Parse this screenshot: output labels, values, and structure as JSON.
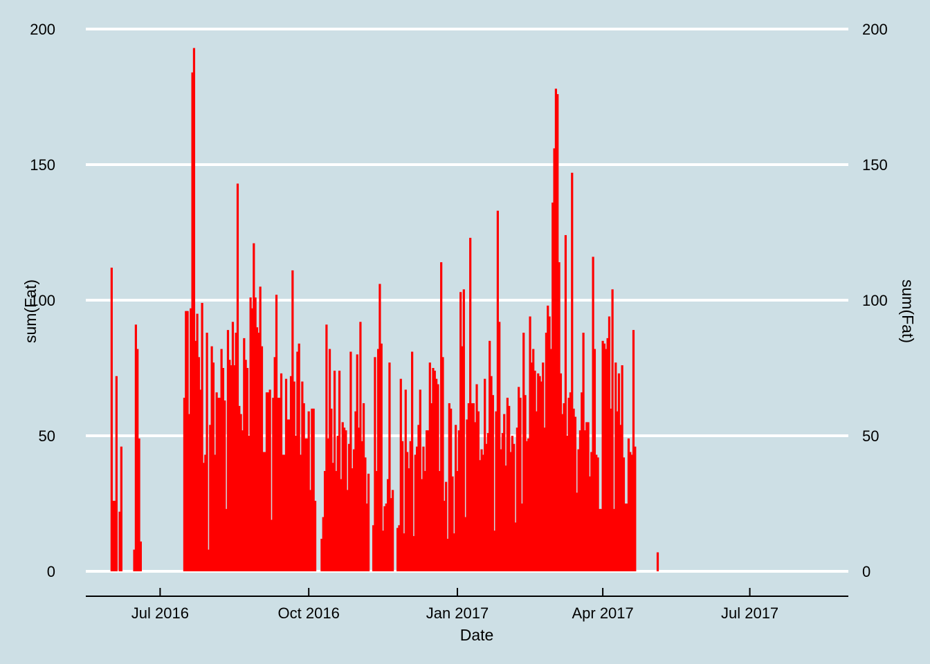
{
  "chart_data": {
    "type": "bar",
    "xlabel": "Date",
    "ylabel": "sum(Fat)",
    "ylabel_right": "sum(Fat)",
    "x_ticks": [
      {
        "date": "2016-07-01",
        "label": "Jul 2016"
      },
      {
        "date": "2016-10-01",
        "label": "Oct 2016"
      },
      {
        "date": "2017-01-01",
        "label": "Jan 2017"
      },
      {
        "date": "2017-04-01",
        "label": "Apr 2017"
      },
      {
        "date": "2017-07-01",
        "label": "Jul 2017"
      }
    ],
    "y_ticks": [
      0,
      50,
      100,
      150,
      200
    ],
    "ylim": [
      0,
      200
    ],
    "xlim": [
      "2016-05-16",
      "2017-08-31"
    ],
    "grid": "horizontal",
    "bar_color": "#ff0000",
    "background_color": "#cddfe5",
    "series": [
      {
        "points": [
          [
            "2016-06-01",
            112
          ],
          [
            "2016-06-02",
            26
          ],
          [
            "2016-06-03",
            26
          ],
          [
            "2016-06-04",
            72
          ],
          [
            "2016-06-06",
            22
          ],
          [
            "2016-06-07",
            46
          ],
          [
            "2016-06-15",
            8
          ],
          [
            "2016-06-16",
            91
          ],
          [
            "2016-06-17",
            82
          ],
          [
            "2016-06-18",
            49
          ],
          [
            "2016-06-19",
            11
          ],
          [
            "2016-07-16",
            64
          ],
          [
            "2016-07-17",
            96
          ],
          [
            "2016-07-18",
            96
          ],
          [
            "2016-07-19",
            58
          ],
          [
            "2016-07-20",
            97
          ],
          [
            "2016-07-21",
            184
          ],
          [
            "2016-07-22",
            193
          ],
          [
            "2016-07-23",
            85
          ],
          [
            "2016-07-24",
            95
          ],
          [
            "2016-07-25",
            79
          ],
          [
            "2016-07-26",
            67
          ],
          [
            "2016-07-27",
            99
          ],
          [
            "2016-07-28",
            40
          ],
          [
            "2016-07-29",
            43
          ],
          [
            "2016-07-30",
            88
          ],
          [
            "2016-07-31",
            8
          ],
          [
            "2016-08-01",
            54
          ],
          [
            "2016-08-02",
            83
          ],
          [
            "2016-08-03",
            77
          ],
          [
            "2016-08-04",
            43
          ],
          [
            "2016-08-05",
            66
          ],
          [
            "2016-08-06",
            64
          ],
          [
            "2016-08-07",
            64
          ],
          [
            "2016-08-08",
            82
          ],
          [
            "2016-08-09",
            75
          ],
          [
            "2016-08-10",
            63
          ],
          [
            "2016-08-11",
            23
          ],
          [
            "2016-08-12",
            89
          ],
          [
            "2016-08-13",
            78
          ],
          [
            "2016-08-14",
            76
          ],
          [
            "2016-08-15",
            92
          ],
          [
            "2016-08-16",
            76
          ],
          [
            "2016-08-17",
            88
          ],
          [
            "2016-08-18",
            143
          ],
          [
            "2016-08-19",
            61
          ],
          [
            "2016-08-20",
            58
          ],
          [
            "2016-08-21",
            52
          ],
          [
            "2016-08-22",
            86
          ],
          [
            "2016-08-23",
            78
          ],
          [
            "2016-08-24",
            75
          ],
          [
            "2016-08-25",
            50
          ],
          [
            "2016-08-26",
            101
          ],
          [
            "2016-08-27",
            97
          ],
          [
            "2016-08-28",
            121
          ],
          [
            "2016-08-29",
            101
          ],
          [
            "2016-08-30",
            90
          ],
          [
            "2016-08-31",
            88
          ],
          [
            "2016-09-01",
            105
          ],
          [
            "2016-09-02",
            83
          ],
          [
            "2016-09-03",
            44
          ],
          [
            "2016-09-04",
            44
          ],
          [
            "2016-09-05",
            66
          ],
          [
            "2016-09-06",
            66
          ],
          [
            "2016-09-07",
            67
          ],
          [
            "2016-09-08",
            19
          ],
          [
            "2016-09-09",
            64
          ],
          [
            "2016-09-10",
            79
          ],
          [
            "2016-09-11",
            102
          ],
          [
            "2016-09-12",
            64
          ],
          [
            "2016-09-13",
            64
          ],
          [
            "2016-09-14",
            73
          ],
          [
            "2016-09-15",
            43
          ],
          [
            "2016-09-16",
            43
          ],
          [
            "2016-09-17",
            71
          ],
          [
            "2016-09-18",
            56
          ],
          [
            "2016-09-19",
            56
          ],
          [
            "2016-09-20",
            72
          ],
          [
            "2016-09-21",
            111
          ],
          [
            "2016-09-22",
            70
          ],
          [
            "2016-09-23",
            50
          ],
          [
            "2016-09-24",
            81
          ],
          [
            "2016-09-25",
            84
          ],
          [
            "2016-09-26",
            43
          ],
          [
            "2016-09-27",
            70
          ],
          [
            "2016-09-28",
            62
          ],
          [
            "2016-09-29",
            49
          ],
          [
            "2016-09-30",
            49
          ],
          [
            "2016-10-01",
            59
          ],
          [
            "2016-10-02",
            30
          ],
          [
            "2016-10-03",
            60
          ],
          [
            "2016-10-04",
            60
          ],
          [
            "2016-10-05",
            26
          ],
          [
            "2016-10-09",
            12
          ],
          [
            "2016-10-10",
            20
          ],
          [
            "2016-10-11",
            37
          ],
          [
            "2016-10-12",
            91
          ],
          [
            "2016-10-13",
            49
          ],
          [
            "2016-10-14",
            82
          ],
          [
            "2016-10-15",
            60
          ],
          [
            "2016-10-16",
            40
          ],
          [
            "2016-10-17",
            74
          ],
          [
            "2016-10-18",
            37
          ],
          [
            "2016-10-19",
            50
          ],
          [
            "2016-10-20",
            74
          ],
          [
            "2016-10-21",
            34
          ],
          [
            "2016-10-22",
            55
          ],
          [
            "2016-10-23",
            53
          ],
          [
            "2016-10-24",
            52
          ],
          [
            "2016-10-25",
            30
          ],
          [
            "2016-10-26",
            47
          ],
          [
            "2016-10-27",
            81
          ],
          [
            "2016-10-28",
            38
          ],
          [
            "2016-10-29",
            45
          ],
          [
            "2016-10-30",
            59
          ],
          [
            "2016-10-31",
            80
          ],
          [
            "2016-11-01",
            53
          ],
          [
            "2016-11-02",
            92
          ],
          [
            "2016-11-03",
            48
          ],
          [
            "2016-11-04",
            62
          ],
          [
            "2016-11-05",
            42
          ],
          [
            "2016-11-06",
            25
          ],
          [
            "2016-11-07",
            36
          ],
          [
            "2016-11-10",
            17
          ],
          [
            "2016-11-11",
            79
          ],
          [
            "2016-11-12",
            37
          ],
          [
            "2016-11-13",
            82
          ],
          [
            "2016-11-14",
            106
          ],
          [
            "2016-11-15",
            84
          ],
          [
            "2016-11-16",
            15
          ],
          [
            "2016-11-17",
            24
          ],
          [
            "2016-11-18",
            25
          ],
          [
            "2016-11-19",
            34
          ],
          [
            "2016-11-20",
            77
          ],
          [
            "2016-11-21",
            27
          ],
          [
            "2016-11-22",
            30
          ],
          [
            "2016-11-25",
            16
          ],
          [
            "2016-11-26",
            17
          ],
          [
            "2016-11-27",
            71
          ],
          [
            "2016-11-28",
            48
          ],
          [
            "2016-11-29",
            14
          ],
          [
            "2016-11-30",
            67
          ],
          [
            "2016-12-01",
            44
          ],
          [
            "2016-12-02",
            38
          ],
          [
            "2016-12-03",
            48
          ],
          [
            "2016-12-04",
            81
          ],
          [
            "2016-12-05",
            13
          ],
          [
            "2016-12-06",
            43
          ],
          [
            "2016-12-07",
            46
          ],
          [
            "2016-12-08",
            54
          ],
          [
            "2016-12-09",
            67
          ],
          [
            "2016-12-10",
            34
          ],
          [
            "2016-12-11",
            46
          ],
          [
            "2016-12-12",
            37
          ],
          [
            "2016-12-13",
            52
          ],
          [
            "2016-12-14",
            52
          ],
          [
            "2016-12-15",
            77
          ],
          [
            "2016-12-16",
            62
          ],
          [
            "2016-12-17",
            75
          ],
          [
            "2016-12-18",
            74
          ],
          [
            "2016-12-19",
            71
          ],
          [
            "2016-12-20",
            69
          ],
          [
            "2016-12-21",
            37
          ],
          [
            "2016-12-22",
            114
          ],
          [
            "2016-12-23",
            79
          ],
          [
            "2016-12-24",
            26
          ],
          [
            "2016-12-25",
            33
          ],
          [
            "2016-12-26",
            12
          ],
          [
            "2016-12-27",
            62
          ],
          [
            "2016-12-28",
            60
          ],
          [
            "2016-12-29",
            35
          ],
          [
            "2016-12-30",
            14
          ],
          [
            "2016-12-31",
            54
          ],
          [
            "2017-01-01",
            37
          ],
          [
            "2017-01-02",
            52
          ],
          [
            "2017-01-03",
            103
          ],
          [
            "2017-01-04",
            83
          ],
          [
            "2017-01-05",
            104
          ],
          [
            "2017-01-06",
            20
          ],
          [
            "2017-01-07",
            56
          ],
          [
            "2017-01-08",
            62
          ],
          [
            "2017-01-09",
            123
          ],
          [
            "2017-01-10",
            62
          ],
          [
            "2017-01-11",
            62
          ],
          [
            "2017-01-12",
            55
          ],
          [
            "2017-01-13",
            69
          ],
          [
            "2017-01-14",
            59
          ],
          [
            "2017-01-15",
            41
          ],
          [
            "2017-01-16",
            45
          ],
          [
            "2017-01-17",
            43
          ],
          [
            "2017-01-18",
            71
          ],
          [
            "2017-01-19",
            47
          ],
          [
            "2017-01-20",
            51
          ],
          [
            "2017-01-21",
            85
          ],
          [
            "2017-01-22",
            72
          ],
          [
            "2017-01-23",
            65
          ],
          [
            "2017-01-24",
            15
          ],
          [
            "2017-01-25",
            59
          ],
          [
            "2017-01-26",
            133
          ],
          [
            "2017-01-27",
            92
          ],
          [
            "2017-01-28",
            45
          ],
          [
            "2017-01-29",
            51
          ],
          [
            "2017-01-30",
            58
          ],
          [
            "2017-01-31",
            39
          ],
          [
            "2017-02-01",
            64
          ],
          [
            "2017-02-02",
            61
          ],
          [
            "2017-02-03",
            44
          ],
          [
            "2017-02-04",
            50
          ],
          [
            "2017-02-05",
            47
          ],
          [
            "2017-02-06",
            18
          ],
          [
            "2017-02-07",
            53
          ],
          [
            "2017-02-08",
            68
          ],
          [
            "2017-02-09",
            64
          ],
          [
            "2017-02-10",
            25
          ],
          [
            "2017-02-11",
            88
          ],
          [
            "2017-02-12",
            65
          ],
          [
            "2017-02-13",
            48
          ],
          [
            "2017-02-14",
            49
          ],
          [
            "2017-02-15",
            94
          ],
          [
            "2017-02-16",
            77
          ],
          [
            "2017-02-17",
            82
          ],
          [
            "2017-02-18",
            74
          ],
          [
            "2017-02-19",
            59
          ],
          [
            "2017-02-20",
            73
          ],
          [
            "2017-02-21",
            72
          ],
          [
            "2017-02-22",
            70
          ],
          [
            "2017-02-23",
            77
          ],
          [
            "2017-02-24",
            53
          ],
          [
            "2017-02-25",
            88
          ],
          [
            "2017-02-26",
            98
          ],
          [
            "2017-02-27",
            94
          ],
          [
            "2017-02-28",
            82
          ],
          [
            "2017-03-01",
            136
          ],
          [
            "2017-03-02",
            156
          ],
          [
            "2017-03-03",
            178
          ],
          [
            "2017-03-04",
            176
          ],
          [
            "2017-03-05",
            114
          ],
          [
            "2017-03-06",
            73
          ],
          [
            "2017-03-07",
            58
          ],
          [
            "2017-03-08",
            62
          ],
          [
            "2017-03-09",
            124
          ],
          [
            "2017-03-10",
            50
          ],
          [
            "2017-03-11",
            64
          ],
          [
            "2017-03-12",
            66
          ],
          [
            "2017-03-13",
            147
          ],
          [
            "2017-03-14",
            60
          ],
          [
            "2017-03-15",
            57
          ],
          [
            "2017-03-16",
            29
          ],
          [
            "2017-03-17",
            45
          ],
          [
            "2017-03-18",
            52
          ],
          [
            "2017-03-19",
            66
          ],
          [
            "2017-03-20",
            88
          ],
          [
            "2017-03-21",
            52
          ],
          [
            "2017-03-22",
            55
          ],
          [
            "2017-03-23",
            55
          ],
          [
            "2017-03-24",
            35
          ],
          [
            "2017-03-25",
            44
          ],
          [
            "2017-03-26",
            116
          ],
          [
            "2017-03-27",
            82
          ],
          [
            "2017-03-28",
            43
          ],
          [
            "2017-03-29",
            42
          ],
          [
            "2017-03-30",
            23
          ],
          [
            "2017-03-31",
            23
          ],
          [
            "2017-04-01",
            85
          ],
          [
            "2017-04-02",
            84
          ],
          [
            "2017-04-03",
            82
          ],
          [
            "2017-04-04",
            86
          ],
          [
            "2017-04-05",
            94
          ],
          [
            "2017-04-06",
            60
          ],
          [
            "2017-04-07",
            104
          ],
          [
            "2017-04-08",
            23
          ],
          [
            "2017-04-09",
            77
          ],
          [
            "2017-04-10",
            59
          ],
          [
            "2017-04-11",
            73
          ],
          [
            "2017-04-12",
            54
          ],
          [
            "2017-04-13",
            76
          ],
          [
            "2017-04-14",
            42
          ],
          [
            "2017-04-15",
            25
          ],
          [
            "2017-04-16",
            25
          ],
          [
            "2017-04-17",
            49
          ],
          [
            "2017-04-18",
            44
          ],
          [
            "2017-04-19",
            43
          ],
          [
            "2017-04-20",
            89
          ],
          [
            "2017-04-21",
            46
          ],
          [
            "2017-05-05",
            7
          ]
        ]
      }
    ]
  }
}
